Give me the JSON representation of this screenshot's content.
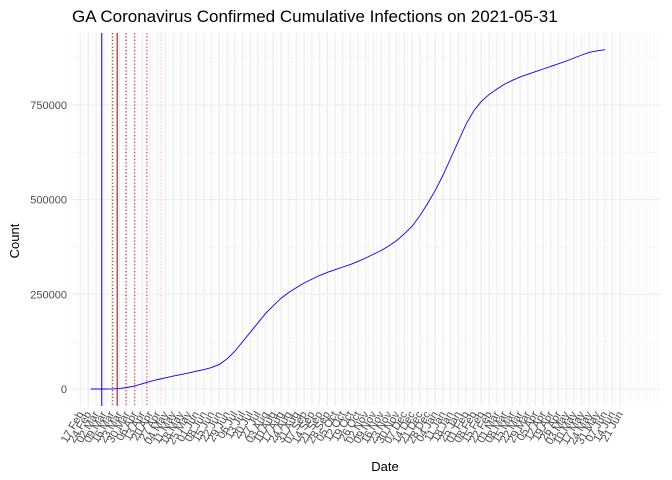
{
  "chart_data": {
    "type": "line",
    "title": "GA Coronavirus Confirmed Cumulative Infections on 2021-05-31",
    "xlabel": "Date",
    "ylabel": "Count",
    "x_axis": "date",
    "xlim": [
      "2020-02-09",
      "2021-07-27"
    ],
    "ylim": [
      -45000,
      940000
    ],
    "y_ticks": [
      0,
      250000,
      500000,
      750000
    ],
    "y_tick_labels": [
      "0",
      "250000",
      "500000",
      "750000"
    ],
    "x_tick_labels": [
      "17 Feb",
      "24 Feb",
      "02 Mar",
      "09 Mar",
      "16 Mar",
      "23 Mar",
      "30 Mar",
      "06 Apr",
      "13 Apr",
      "20 Apr",
      "27 Apr",
      "04 May",
      "11 May",
      "18 May",
      "25 May",
      "01 Jun",
      "08 Jun",
      "15 Jun",
      "22 Jun",
      "29 Jun",
      "06 Jul",
      "13 Jul",
      "20 Jul",
      "27 Jul",
      "03 Aug",
      "10 Aug",
      "17 Aug",
      "24 Aug",
      "31 Aug",
      "07 Sep",
      "14 Sep",
      "21 Sep",
      "28 Sep",
      "05 Oct",
      "12 Oct",
      "19 Oct",
      "26 Oct",
      "02 Nov",
      "09 Nov",
      "16 Nov",
      "23 Nov",
      "30 Nov",
      "07 Dec",
      "14 Dec",
      "21 Dec",
      "28 Dec",
      "04 Jan",
      "11 Jan",
      "18 Jan",
      "25 Jan",
      "01 Feb",
      "08 Feb",
      "15 Feb",
      "22 Feb",
      "01 Mar",
      "08 Mar",
      "15 Mar",
      "22 Mar",
      "29 Mar",
      "05 Apr",
      "12 Apr",
      "19 Apr",
      "26 Apr",
      "03 May",
      "10 May",
      "17 May",
      "24 May",
      "31 May",
      "07 Jun",
      "14 Jun",
      "21 Jun"
    ],
    "x_tick_dates": [
      "2020-02-17",
      "2020-02-24",
      "2020-03-02",
      "2020-03-09",
      "2020-03-16",
      "2020-03-23",
      "2020-03-30",
      "2020-04-06",
      "2020-04-13",
      "2020-04-20",
      "2020-04-27",
      "2020-05-04",
      "2020-05-11",
      "2020-05-18",
      "2020-05-25",
      "2020-06-01",
      "2020-06-08",
      "2020-06-15",
      "2020-06-22",
      "2020-06-29",
      "2020-07-06",
      "2020-07-13",
      "2020-07-20",
      "2020-07-27",
      "2020-08-03",
      "2020-08-10",
      "2020-08-17",
      "2020-08-24",
      "2020-08-31",
      "2020-09-07",
      "2020-09-14",
      "2020-09-21",
      "2020-09-28",
      "2020-10-05",
      "2020-10-12",
      "2020-10-19",
      "2020-10-26",
      "2020-11-02",
      "2020-11-09",
      "2020-11-16",
      "2020-11-23",
      "2020-11-30",
      "2020-12-07",
      "2020-12-14",
      "2020-12-21",
      "2020-12-28",
      "2021-01-04",
      "2021-01-11",
      "2021-01-18",
      "2021-01-25",
      "2021-02-01",
      "2021-02-08",
      "2021-02-15",
      "2021-02-22",
      "2021-03-01",
      "2021-03-08",
      "2021-03-15",
      "2021-03-22",
      "2021-03-29",
      "2021-04-05",
      "2021-04-12",
      "2021-04-19",
      "2021-04-26",
      "2021-05-03",
      "2021-05-10",
      "2021-05-17",
      "2021-05-24",
      "2021-05-31",
      "2021-06-07",
      "2021-06-14",
      "2021-06-21"
    ],
    "series": [
      {
        "color": "#0000ff",
        "points": [
          [
            "2020-02-26",
            0
          ],
          [
            "2020-03-02",
            0
          ],
          [
            "2020-03-09",
            5
          ],
          [
            "2020-03-16",
            120
          ],
          [
            "2020-03-23",
            1000
          ],
          [
            "2020-03-30",
            3900
          ],
          [
            "2020-04-06",
            8000
          ],
          [
            "2020-04-13",
            14000
          ],
          [
            "2020-04-20",
            20000
          ],
          [
            "2020-04-27",
            25000
          ],
          [
            "2020-05-04",
            29500
          ],
          [
            "2020-05-11",
            34000
          ],
          [
            "2020-05-18",
            38000
          ],
          [
            "2020-05-25",
            42500
          ],
          [
            "2020-06-01",
            47000
          ],
          [
            "2020-06-08",
            51000
          ],
          [
            "2020-06-15",
            57000
          ],
          [
            "2020-06-22",
            65000
          ],
          [
            "2020-06-29",
            80000
          ],
          [
            "2020-07-06",
            100000
          ],
          [
            "2020-07-13",
            125000
          ],
          [
            "2020-07-20",
            150000
          ],
          [
            "2020-07-27",
            175000
          ],
          [
            "2020-08-03",
            200000
          ],
          [
            "2020-08-10",
            220000
          ],
          [
            "2020-08-17",
            240000
          ],
          [
            "2020-08-24",
            255000
          ],
          [
            "2020-08-31",
            268000
          ],
          [
            "2020-09-07",
            280000
          ],
          [
            "2020-09-14",
            290000
          ],
          [
            "2020-09-21",
            300000
          ],
          [
            "2020-09-28",
            308000
          ],
          [
            "2020-10-05",
            315000
          ],
          [
            "2020-10-12",
            322000
          ],
          [
            "2020-10-19",
            329000
          ],
          [
            "2020-10-26",
            337000
          ],
          [
            "2020-11-02",
            346000
          ],
          [
            "2020-11-09",
            356000
          ],
          [
            "2020-11-16",
            366000
          ],
          [
            "2020-11-23",
            378000
          ],
          [
            "2020-11-30",
            392000
          ],
          [
            "2020-12-07",
            410000
          ],
          [
            "2020-12-14",
            430000
          ],
          [
            "2020-12-21",
            458000
          ],
          [
            "2020-12-28",
            490000
          ],
          [
            "2021-01-04",
            525000
          ],
          [
            "2021-01-11",
            565000
          ],
          [
            "2021-01-18",
            610000
          ],
          [
            "2021-01-25",
            655000
          ],
          [
            "2021-02-01",
            700000
          ],
          [
            "2021-02-08",
            735000
          ],
          [
            "2021-02-15",
            760000
          ],
          [
            "2021-02-22",
            778000
          ],
          [
            "2021-03-01",
            792000
          ],
          [
            "2021-03-08",
            805000
          ],
          [
            "2021-03-15",
            815000
          ],
          [
            "2021-03-22",
            824000
          ],
          [
            "2021-03-29",
            831000
          ],
          [
            "2021-04-05",
            838000
          ],
          [
            "2021-04-12",
            845000
          ],
          [
            "2021-04-19",
            852000
          ],
          [
            "2021-04-26",
            859000
          ],
          [
            "2021-05-03",
            866000
          ],
          [
            "2021-05-10",
            874000
          ],
          [
            "2021-05-17",
            882000
          ],
          [
            "2021-05-24",
            889000
          ],
          [
            "2021-05-31",
            893000
          ],
          [
            "2021-06-07",
            896000
          ]
        ]
      }
    ],
    "reference_lines": [
      {
        "date": "2020-03-07",
        "color": "#0000ff",
        "style": "solid"
      },
      {
        "date": "2020-03-17",
        "color": "#8b0000",
        "style": "dotted"
      },
      {
        "date": "2020-03-21",
        "color": "#8b0000",
        "style": "solid"
      },
      {
        "date": "2020-03-29",
        "color": "#8b0000",
        "style": "dotted"
      },
      {
        "date": "2020-04-06",
        "color": "#ff0000",
        "style": "dotted"
      },
      {
        "date": "2020-04-17",
        "color": "#ff0000",
        "style": "dotted"
      },
      {
        "date": "2020-04-30",
        "color": "#ffb6b6",
        "style": "dotted"
      }
    ],
    "grid": true,
    "legend": "none"
  }
}
